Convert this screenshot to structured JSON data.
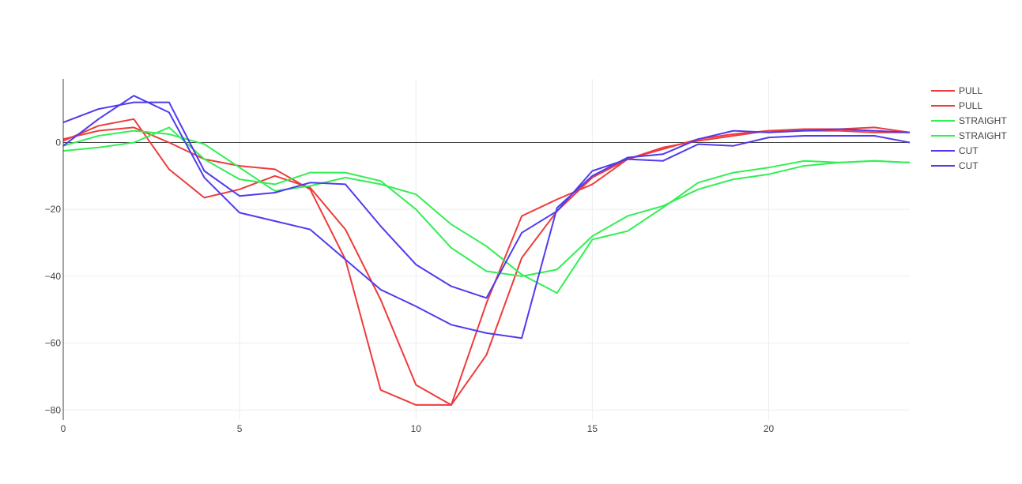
{
  "chart_data": {
    "type": "line",
    "title": "",
    "xlabel": "",
    "ylabel": "",
    "xlim": [
      0,
      24
    ],
    "ylim": [
      -83,
      19
    ],
    "x_ticks": [
      0,
      5,
      10,
      15,
      20
    ],
    "y_ticks": [
      0,
      -20,
      -40,
      -60,
      -80
    ],
    "grid": true,
    "zero_line": true,
    "legend_position": "top-right",
    "x": [
      0,
      1,
      2,
      3,
      4,
      5,
      6,
      7,
      8,
      9,
      10,
      11,
      12,
      13,
      14,
      15,
      16,
      17,
      18,
      19,
      20,
      21,
      22,
      23,
      24
    ],
    "series": [
      {
        "name": "PULL",
        "color": "#EF3B3B",
        "values": [
          0.5,
          5,
          7,
          -8,
          -16.5,
          -14,
          -10,
          -13.5,
          -26,
          -47,
          -72.5,
          -78.5,
          -63.5,
          -34.5,
          -20.5,
          -10.5,
          -5,
          -2,
          1,
          2.5,
          3.5,
          4,
          4,
          4.5,
          3
        ]
      },
      {
        "name": "PULL",
        "color": "#EF3B3B",
        "values": [
          1,
          3.5,
          4.5,
          0,
          -5,
          -7,
          -8,
          -14,
          -35,
          -74,
          -78.5,
          -78.5,
          -48,
          -22,
          -17,
          -12.5,
          -5,
          -1.5,
          0.5,
          2,
          3.5,
          3.5,
          3.5,
          3,
          3
        ]
      },
      {
        "name": "STRAIGHT",
        "color": "#33EE55",
        "values": [
          -2.5,
          -1.5,
          0,
          4.5,
          -5,
          -11,
          -12.5,
          -9,
          -9,
          -11.5,
          -20,
          -31.5,
          -38.5,
          -40,
          -38,
          -28,
          -22,
          -19,
          -14,
          -11,
          -9.5,
          -7,
          -6,
          -5.5,
          -6
        ]
      },
      {
        "name": "STRAIGHT",
        "color": "#33EE55",
        "values": [
          -1,
          2,
          3.5,
          2.5,
          -0.5,
          -7.5,
          -14.5,
          -13,
          -10.5,
          -12.5,
          -15.5,
          -24.5,
          -31,
          -39.5,
          -45,
          -29,
          -26.5,
          -19.5,
          -12,
          -9,
          -7.5,
          -5.5,
          -6,
          -5.5,
          -6
        ]
      },
      {
        "name": "CUT",
        "color": "#4F3BEE",
        "values": [
          6,
          10,
          12,
          12,
          -8.5,
          -16,
          -15,
          -12,
          -12.5,
          -25,
          -36.5,
          -43,
          -46.5,
          -27,
          -20.5,
          -8.5,
          -5,
          -5.5,
          -0.5,
          -1,
          1.5,
          2,
          2,
          2,
          0
        ]
      },
      {
        "name": "CUT",
        "color": "#4F3BEE",
        "values": [
          -1,
          7,
          14,
          9,
          -10.5,
          -21,
          -23.5,
          -26,
          -35,
          -44,
          -49,
          -54.5,
          -57,
          -58.5,
          -19.5,
          -10,
          -4.5,
          -3.5,
          1,
          3.5,
          3,
          3.5,
          4,
          3.5,
          3
        ]
      }
    ]
  }
}
